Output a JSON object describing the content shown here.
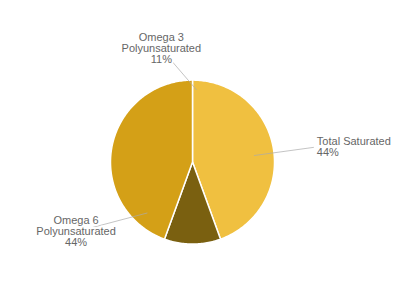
{
  "chart_data": {
    "type": "pie",
    "values": [
      44,
      11,
      44
    ],
    "colors": [
      "#F0C040",
      "#7A6010",
      "#D4A017"
    ],
    "annotations": [
      {
        "text": "Total Saturated\n44%"
      },
      {
        "text": "Omega 3\nPolyunsaturated\n11%"
      },
      {
        "text": "Omega 6\nPolyunsaturated\n44%"
      }
    ]
  }
}
